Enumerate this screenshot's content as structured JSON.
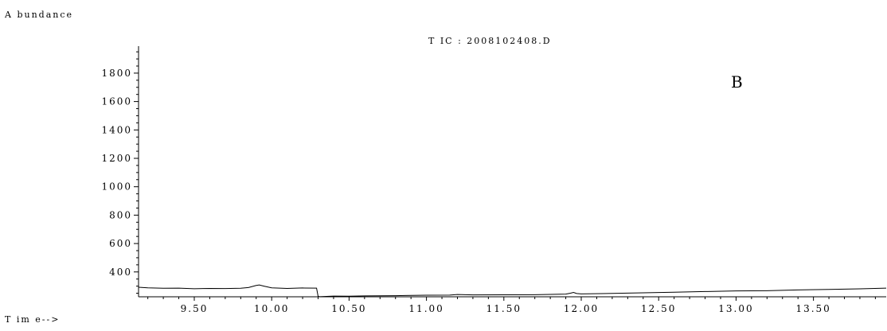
{
  "chart_data": {
    "type": "line",
    "title": "T IC : 2008102408.D",
    "ylabel": "A bundance",
    "xlabel": "T im e-->",
    "panel_label": "B",
    "xlim": [
      9.14,
      13.97
    ],
    "ylim": [
      225,
      1990
    ],
    "x_ticks": [
      9.5,
      10.0,
      10.5,
      11.0,
      11.5,
      12.0,
      12.5,
      13.0,
      13.5
    ],
    "x_tick_labels": [
      "9.50",
      "10.00",
      "10.50",
      "11.00",
      "11.50",
      "12.00",
      "12.50",
      "13.00",
      "13.50"
    ],
    "y_ticks": [
      400,
      600,
      800,
      1000,
      1200,
      1400,
      1600,
      1800
    ],
    "y_tick_labels": [
      "400",
      "600",
      "800",
      "1000",
      "1200",
      "1400",
      "1600",
      "1800"
    ],
    "grid": false,
    "series": [
      {
        "x": [
          9.14,
          9.2,
          9.3,
          9.4,
          9.5,
          9.6,
          9.7,
          9.8,
          9.85,
          9.9,
          9.92,
          9.95,
          10.0,
          10.1,
          10.2,
          10.29,
          10.3,
          10.31,
          10.4,
          10.5,
          10.6,
          10.8,
          11.0,
          11.15,
          11.2,
          11.3,
          11.5,
          11.7,
          11.9,
          11.93,
          11.95,
          11.97,
          12.0,
          12.2,
          12.4,
          12.6,
          12.8,
          13.0,
          13.2,
          13.4,
          13.6,
          13.8,
          13.97
        ],
        "y": [
          292,
          288,
          285,
          286,
          282,
          284,
          283,
          285,
          290,
          305,
          308,
          300,
          288,
          284,
          287,
          286,
          228,
          226,
          230,
          229,
          231,
          233,
          236,
          237,
          241,
          238,
          239,
          240,
          244,
          250,
          256,
          248,
          245,
          249,
          253,
          257,
          262,
          266,
          268,
          273,
          277,
          281,
          286
        ],
        "color": "#000000"
      }
    ]
  }
}
